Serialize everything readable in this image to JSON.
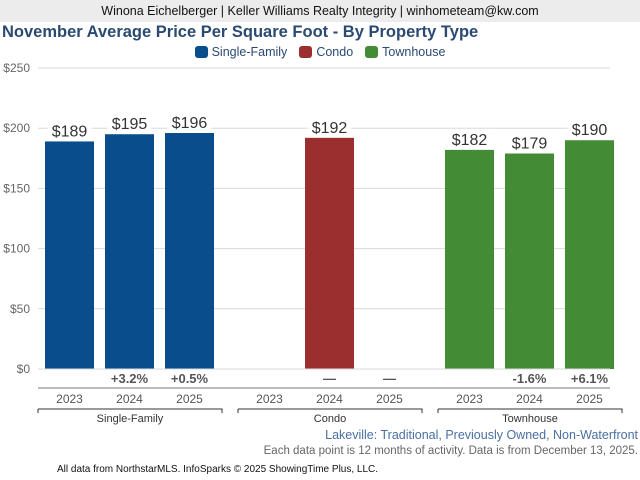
{
  "header": {
    "agent_line": "Winona Eichelberger | Keller Williams Realty Integrity | winhometeam@kw.com"
  },
  "chart_data": {
    "type": "bar",
    "title": "November Average Price Per Square Foot - By Property Type",
    "xlabel": "",
    "ylabel": "",
    "ylim": [
      0,
      250
    ],
    "yticks": [
      0,
      50,
      100,
      150,
      200,
      250
    ],
    "ytick_labels": [
      "$0",
      "$50",
      "$100",
      "$150",
      "$200",
      "$250"
    ],
    "grid": true,
    "legend_position": "top-center",
    "categories": [
      "2023",
      "2024",
      "2025"
    ],
    "series": [
      {
        "name": "Single-Family",
        "color": "#0a4d8c",
        "values": [
          189,
          195,
          196
        ],
        "labels": [
          "$189",
          "$195",
          "$196"
        ],
        "changes": [
          "",
          "+3.2%",
          "+0.5%"
        ]
      },
      {
        "name": "Condo",
        "color": "#9b2f2f",
        "values": [
          null,
          192,
          null
        ],
        "labels": [
          "",
          "$192",
          ""
        ],
        "changes": [
          "",
          "—",
          "—"
        ]
      },
      {
        "name": "Townhouse",
        "color": "#438c35",
        "values": [
          182,
          179,
          190
        ],
        "labels": [
          "$182",
          "$179",
          "$190"
        ],
        "changes": [
          "",
          "-1.6%",
          "+6.1%"
        ]
      }
    ]
  },
  "subtitle": "Lakeville: Traditional, Previously Owned, Non-Waterfront",
  "note": "Each data point is 12 months of activity. Data is from December 13, 2025.",
  "footer": "All data from NorthstarMLS. InfoSparks © 2025 ShowingTime Plus, LLC."
}
